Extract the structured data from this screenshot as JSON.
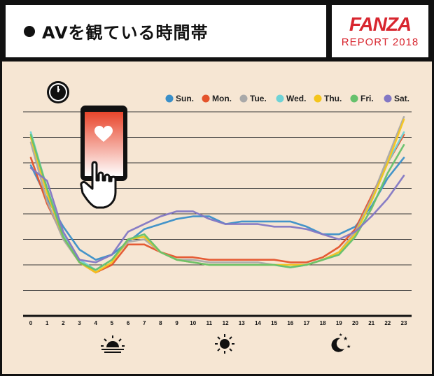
{
  "header": {
    "title": "AVを観ている時間帯",
    "brand_logo": "FANZA",
    "brand_sub": "REPORT 2018"
  },
  "colors": {
    "background": "#f6e6d3",
    "brand": "#d8262f",
    "frame": "#111111"
  },
  "icons": [
    "clock-icon",
    "phone-heart-hand-icon",
    "sunrise-icon",
    "sun-icon",
    "moon-stars-icon"
  ],
  "chart_data": {
    "type": "line",
    "title": "",
    "xlabel": "",
    "ylabel": "",
    "categories": [
      "0",
      "1",
      "2",
      "3",
      "4",
      "5",
      "6",
      "7",
      "8",
      "9",
      "10",
      "11",
      "12",
      "13",
      "14",
      "15",
      "16",
      "17",
      "18",
      "19",
      "20",
      "21",
      "22",
      "23"
    ],
    "ylim": [
      0,
      8
    ],
    "grid": true,
    "legend_position": "top-right",
    "series": [
      {
        "name": "Sun.",
        "color": "#3a8fc8",
        "values": [
          5.9,
          4.6,
          3.5,
          2.6,
          2.2,
          2.4,
          2.9,
          3.4,
          3.6,
          3.8,
          3.9,
          3.9,
          3.6,
          3.7,
          3.7,
          3.7,
          3.7,
          3.5,
          3.2,
          3.2,
          3.5,
          4.3,
          5.4,
          6.2
        ]
      },
      {
        "name": "Mon.",
        "color": "#e4532b",
        "values": [
          6.2,
          4.4,
          3.1,
          2.1,
          1.7,
          2.0,
          2.8,
          2.8,
          2.5,
          2.3,
          2.3,
          2.2,
          2.2,
          2.2,
          2.2,
          2.2,
          2.1,
          2.1,
          2.3,
          2.7,
          3.4,
          4.7,
          6.0,
          7.1
        ]
      },
      {
        "name": "Tue.",
        "color": "#a9a9a9",
        "values": [
          6.8,
          4.5,
          3.0,
          2.1,
          1.8,
          2.2,
          2.9,
          3.0,
          2.5,
          2.2,
          2.2,
          2.1,
          2.1,
          2.1,
          2.1,
          2.0,
          2.0,
          2.0,
          2.2,
          2.5,
          3.3,
          4.6,
          6.2,
          7.8
        ]
      },
      {
        "name": "Wed.",
        "color": "#6fd3d6",
        "values": [
          7.2,
          5.0,
          3.2,
          2.2,
          1.8,
          2.2,
          3.0,
          3.1,
          2.5,
          2.2,
          2.1,
          2.0,
          2.0,
          2.0,
          2.0,
          2.0,
          1.9,
          2.0,
          2.2,
          2.4,
          3.2,
          4.5,
          6.0,
          7.2
        ]
      },
      {
        "name": "Thu.",
        "color": "#f4c51c",
        "values": [
          7.0,
          4.8,
          3.1,
          2.1,
          1.7,
          2.1,
          3.0,
          3.1,
          2.5,
          2.2,
          2.1,
          2.0,
          2.0,
          2.0,
          2.0,
          2.0,
          2.0,
          2.0,
          2.2,
          2.5,
          3.2,
          4.5,
          6.0,
          7.7
        ]
      },
      {
        "name": "Fri.",
        "color": "#66c16c",
        "values": [
          7.1,
          5.0,
          3.1,
          2.1,
          1.8,
          2.2,
          3.0,
          3.2,
          2.5,
          2.2,
          2.1,
          2.0,
          2.0,
          2.0,
          2.0,
          2.0,
          1.9,
          2.0,
          2.2,
          2.4,
          3.1,
          4.2,
          5.6,
          6.7
        ]
      },
      {
        "name": "Sat.",
        "color": "#8277c4",
        "values": [
          5.8,
          5.3,
          3.3,
          2.2,
          2.1,
          2.4,
          3.3,
          3.6,
          3.9,
          4.1,
          4.1,
          3.8,
          3.6,
          3.6,
          3.6,
          3.5,
          3.5,
          3.4,
          3.2,
          3.0,
          3.3,
          3.9,
          4.6,
          5.5
        ]
      }
    ]
  }
}
